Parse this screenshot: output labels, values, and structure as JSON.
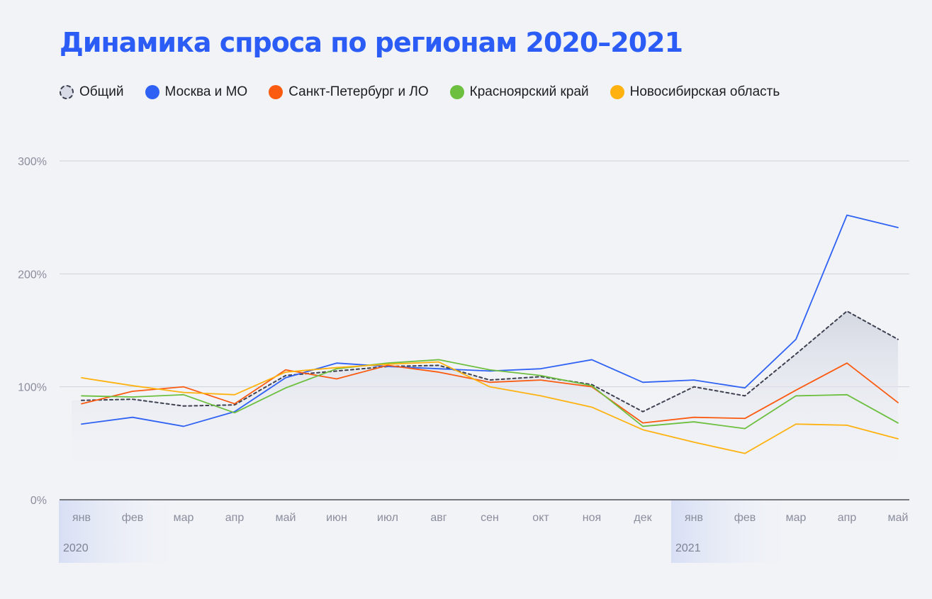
{
  "title": "Динамика спроса по регионам 2020–2021",
  "legend": [
    {
      "label": "Общий",
      "color": "#d9dce6",
      "dashed": true
    },
    {
      "label": "Москва и МО",
      "color": "#2f62f4",
      "dashed": false
    },
    {
      "label": "Санкт-Петербург и ЛО",
      "color": "#fb5b10",
      "dashed": false
    },
    {
      "label": "Красноярский край",
      "color": "#6dbf3f",
      "dashed": false
    },
    {
      "label": "Новосибирская область",
      "color": "#ffb20f",
      "dashed": false
    }
  ],
  "chart_data": {
    "type": "line",
    "title": "Динамика спроса по регионам 2020–2021",
    "xlabel": "",
    "ylabel": "",
    "ylim": [
      0,
      300
    ],
    "yticks": [
      0,
      100,
      200,
      300
    ],
    "ytick_suffix": "%",
    "grid": true,
    "legend_position": "top-left",
    "categories": [
      "янв",
      "фев",
      "мар",
      "апр",
      "май",
      "июн",
      "июл",
      "авг",
      "сен",
      "окт",
      "ноя",
      "дек",
      "янв",
      "фев",
      "мар",
      "апр",
      "май"
    ],
    "year_labels": [
      {
        "label": "2020",
        "start_index": 0
      },
      {
        "label": "2021",
        "start_index": 12
      }
    ],
    "series": [
      {
        "name": "Общий",
        "color": "#3d4150",
        "dashed": true,
        "area": true,
        "values": [
          88,
          89,
          83,
          84,
          110,
          114,
          118,
          119,
          106,
          109,
          102,
          78,
          100,
          92,
          129,
          167,
          142
        ]
      },
      {
        "name": "Москва и МО",
        "color": "#2f62f4",
        "values": [
          67,
          73,
          65,
          78,
          108,
          121,
          118,
          116,
          114,
          116,
          124,
          104,
          106,
          99,
          142,
          252,
          241
        ]
      },
      {
        "name": "Санкт-Петербург и ЛО",
        "color": "#fb5b10",
        "values": [
          85,
          96,
          100,
          85,
          115,
          107,
          119,
          113,
          104,
          106,
          100,
          68,
          73,
          72,
          97,
          121,
          86
        ]
      },
      {
        "name": "Красноярский край",
        "color": "#6dbf3f",
        "values": [
          92,
          91,
          93,
          77,
          99,
          116,
          121,
          124,
          115,
          110,
          101,
          65,
          69,
          63,
          92,
          93,
          68
        ]
      },
      {
        "name": "Новосибирская область",
        "color": "#ffb20f",
        "values": [
          108,
          101,
          95,
          93,
          113,
          117,
          120,
          122,
          100,
          92,
          82,
          62,
          51,
          41,
          67,
          66,
          54
        ]
      }
    ]
  }
}
